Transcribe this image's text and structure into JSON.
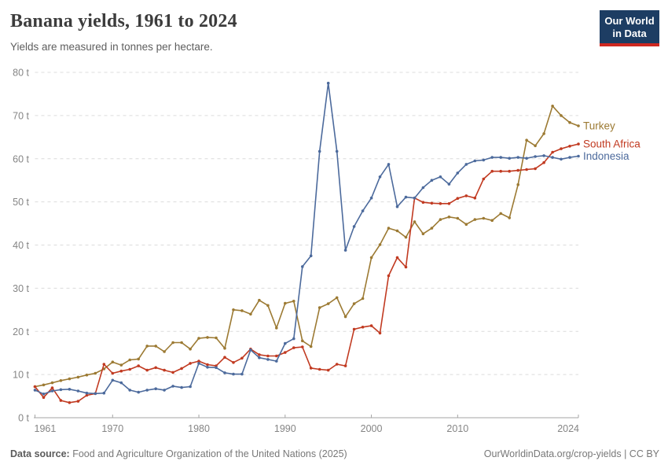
{
  "header": {
    "title": "Banana yields, 1961 to 2024",
    "subtitle": "Yields are measured in tonnes per hectare."
  },
  "logo": {
    "line1": "Our World",
    "line2": "in Data",
    "bg_color": "#1d3d63",
    "bar_color": "#cf2820"
  },
  "footer": {
    "source_label": "Data source:",
    "source_text": " Food and Agriculture Organization of the United Nations (2025)",
    "credit": "OurWorldinData.org/crop-yields | CC BY"
  },
  "chart_data": {
    "type": "line",
    "title": "Banana yields, 1961 to 2024",
    "unit": "tonnes per hectare",
    "ylim": [
      0,
      80
    ],
    "xlim": [
      1961,
      2024
    ],
    "yticks": [
      0,
      10,
      20,
      30,
      40,
      50,
      60,
      70,
      80
    ],
    "ytick_suffix": " t",
    "xticks": [
      1961,
      1970,
      1980,
      1990,
      2000,
      2010,
      2024
    ],
    "grid": "horizontal-dashed",
    "legend_position": "end-of-line-labels",
    "x": [
      1961,
      1962,
      1963,
      1964,
      1965,
      1966,
      1967,
      1968,
      1969,
      1970,
      1971,
      1972,
      1973,
      1974,
      1975,
      1976,
      1977,
      1978,
      1979,
      1980,
      1981,
      1982,
      1983,
      1984,
      1985,
      1986,
      1987,
      1988,
      1989,
      1990,
      1991,
      1992,
      1993,
      1994,
      1995,
      1996,
      1997,
      1998,
      1999,
      2000,
      2001,
      2002,
      2003,
      2004,
      2005,
      2006,
      2007,
      2008,
      2009,
      2010,
      2011,
      2012,
      2013,
      2014,
      2015,
      2016,
      2017,
      2018,
      2019,
      2020,
      2021,
      2022,
      2023,
      2024
    ],
    "series": [
      {
        "name": "Turkey",
        "color": "#9c7a33",
        "values": [
          7.2,
          7.6,
          8.1,
          8.6,
          9.0,
          9.4,
          9.9,
          10.3,
          11.3,
          12.9,
          12.2,
          13.4,
          13.6,
          16.6,
          16.6,
          15.3,
          17.4,
          17.4,
          15.9,
          18.4,
          18.6,
          18.5,
          16.1,
          25.0,
          24.8,
          24.0,
          27.2,
          26.0,
          20.8,
          26.5,
          27.0,
          17.8,
          16.5,
          25.5,
          26.4,
          27.8,
          23.4,
          26.4,
          27.6,
          37.1,
          40.1,
          43.9,
          43.3,
          41.8,
          45.4,
          42.6,
          43.9,
          45.9,
          46.5,
          46.2,
          44.8,
          45.9,
          46.2,
          45.7,
          47.3,
          46.3,
          54.0,
          64.3,
          63.0,
          65.8,
          72.2,
          70.0,
          68.4,
          67.6
        ]
      },
      {
        "name": "South Africa",
        "color": "#c13a21",
        "values": [
          7.2,
          4.7,
          6.9,
          4.0,
          3.5,
          3.8,
          5.2,
          5.6,
          12.4,
          10.3,
          10.8,
          11.2,
          12.0,
          11.0,
          11.6,
          11.0,
          10.5,
          11.4,
          12.6,
          13.1,
          12.3,
          12.0,
          14.0,
          12.8,
          13.8,
          15.9,
          14.6,
          14.3,
          14.3,
          15.1,
          16.2,
          16.4,
          11.5,
          11.2,
          11.0,
          12.4,
          12.0,
          20.5,
          21.0,
          21.3,
          19.6,
          32.9,
          37.1,
          34.9,
          50.9,
          49.9,
          49.7,
          49.6,
          49.6,
          50.8,
          51.4,
          50.9,
          55.3,
          57.1,
          57.1,
          57.1,
          57.3,
          57.5,
          57.7,
          59.1,
          61.5,
          62.3,
          62.9,
          63.4
        ]
      },
      {
        "name": "Indonesia",
        "color": "#4c6a9c",
        "values": [
          6.4,
          5.5,
          6.2,
          6.5,
          6.6,
          6.2,
          5.7,
          5.6,
          5.7,
          8.7,
          8.1,
          6.4,
          5.9,
          6.4,
          6.7,
          6.4,
          7.3,
          7.0,
          7.2,
          12.6,
          11.7,
          11.6,
          10.4,
          10.1,
          10.1,
          15.7,
          13.9,
          13.5,
          13.1,
          17.2,
          18.3,
          35.0,
          37.5,
          61.7,
          77.5,
          61.7,
          38.8,
          44.3,
          47.9,
          50.9,
          55.8,
          58.7,
          48.9,
          51.1,
          50.9,
          53.3,
          55.0,
          55.8,
          54.1,
          56.7,
          58.7,
          59.5,
          59.7,
          60.3,
          60.3,
          60.1,
          60.3,
          60.1,
          60.5,
          60.7,
          60.3,
          59.9,
          60.3,
          60.6
        ]
      }
    ]
  }
}
